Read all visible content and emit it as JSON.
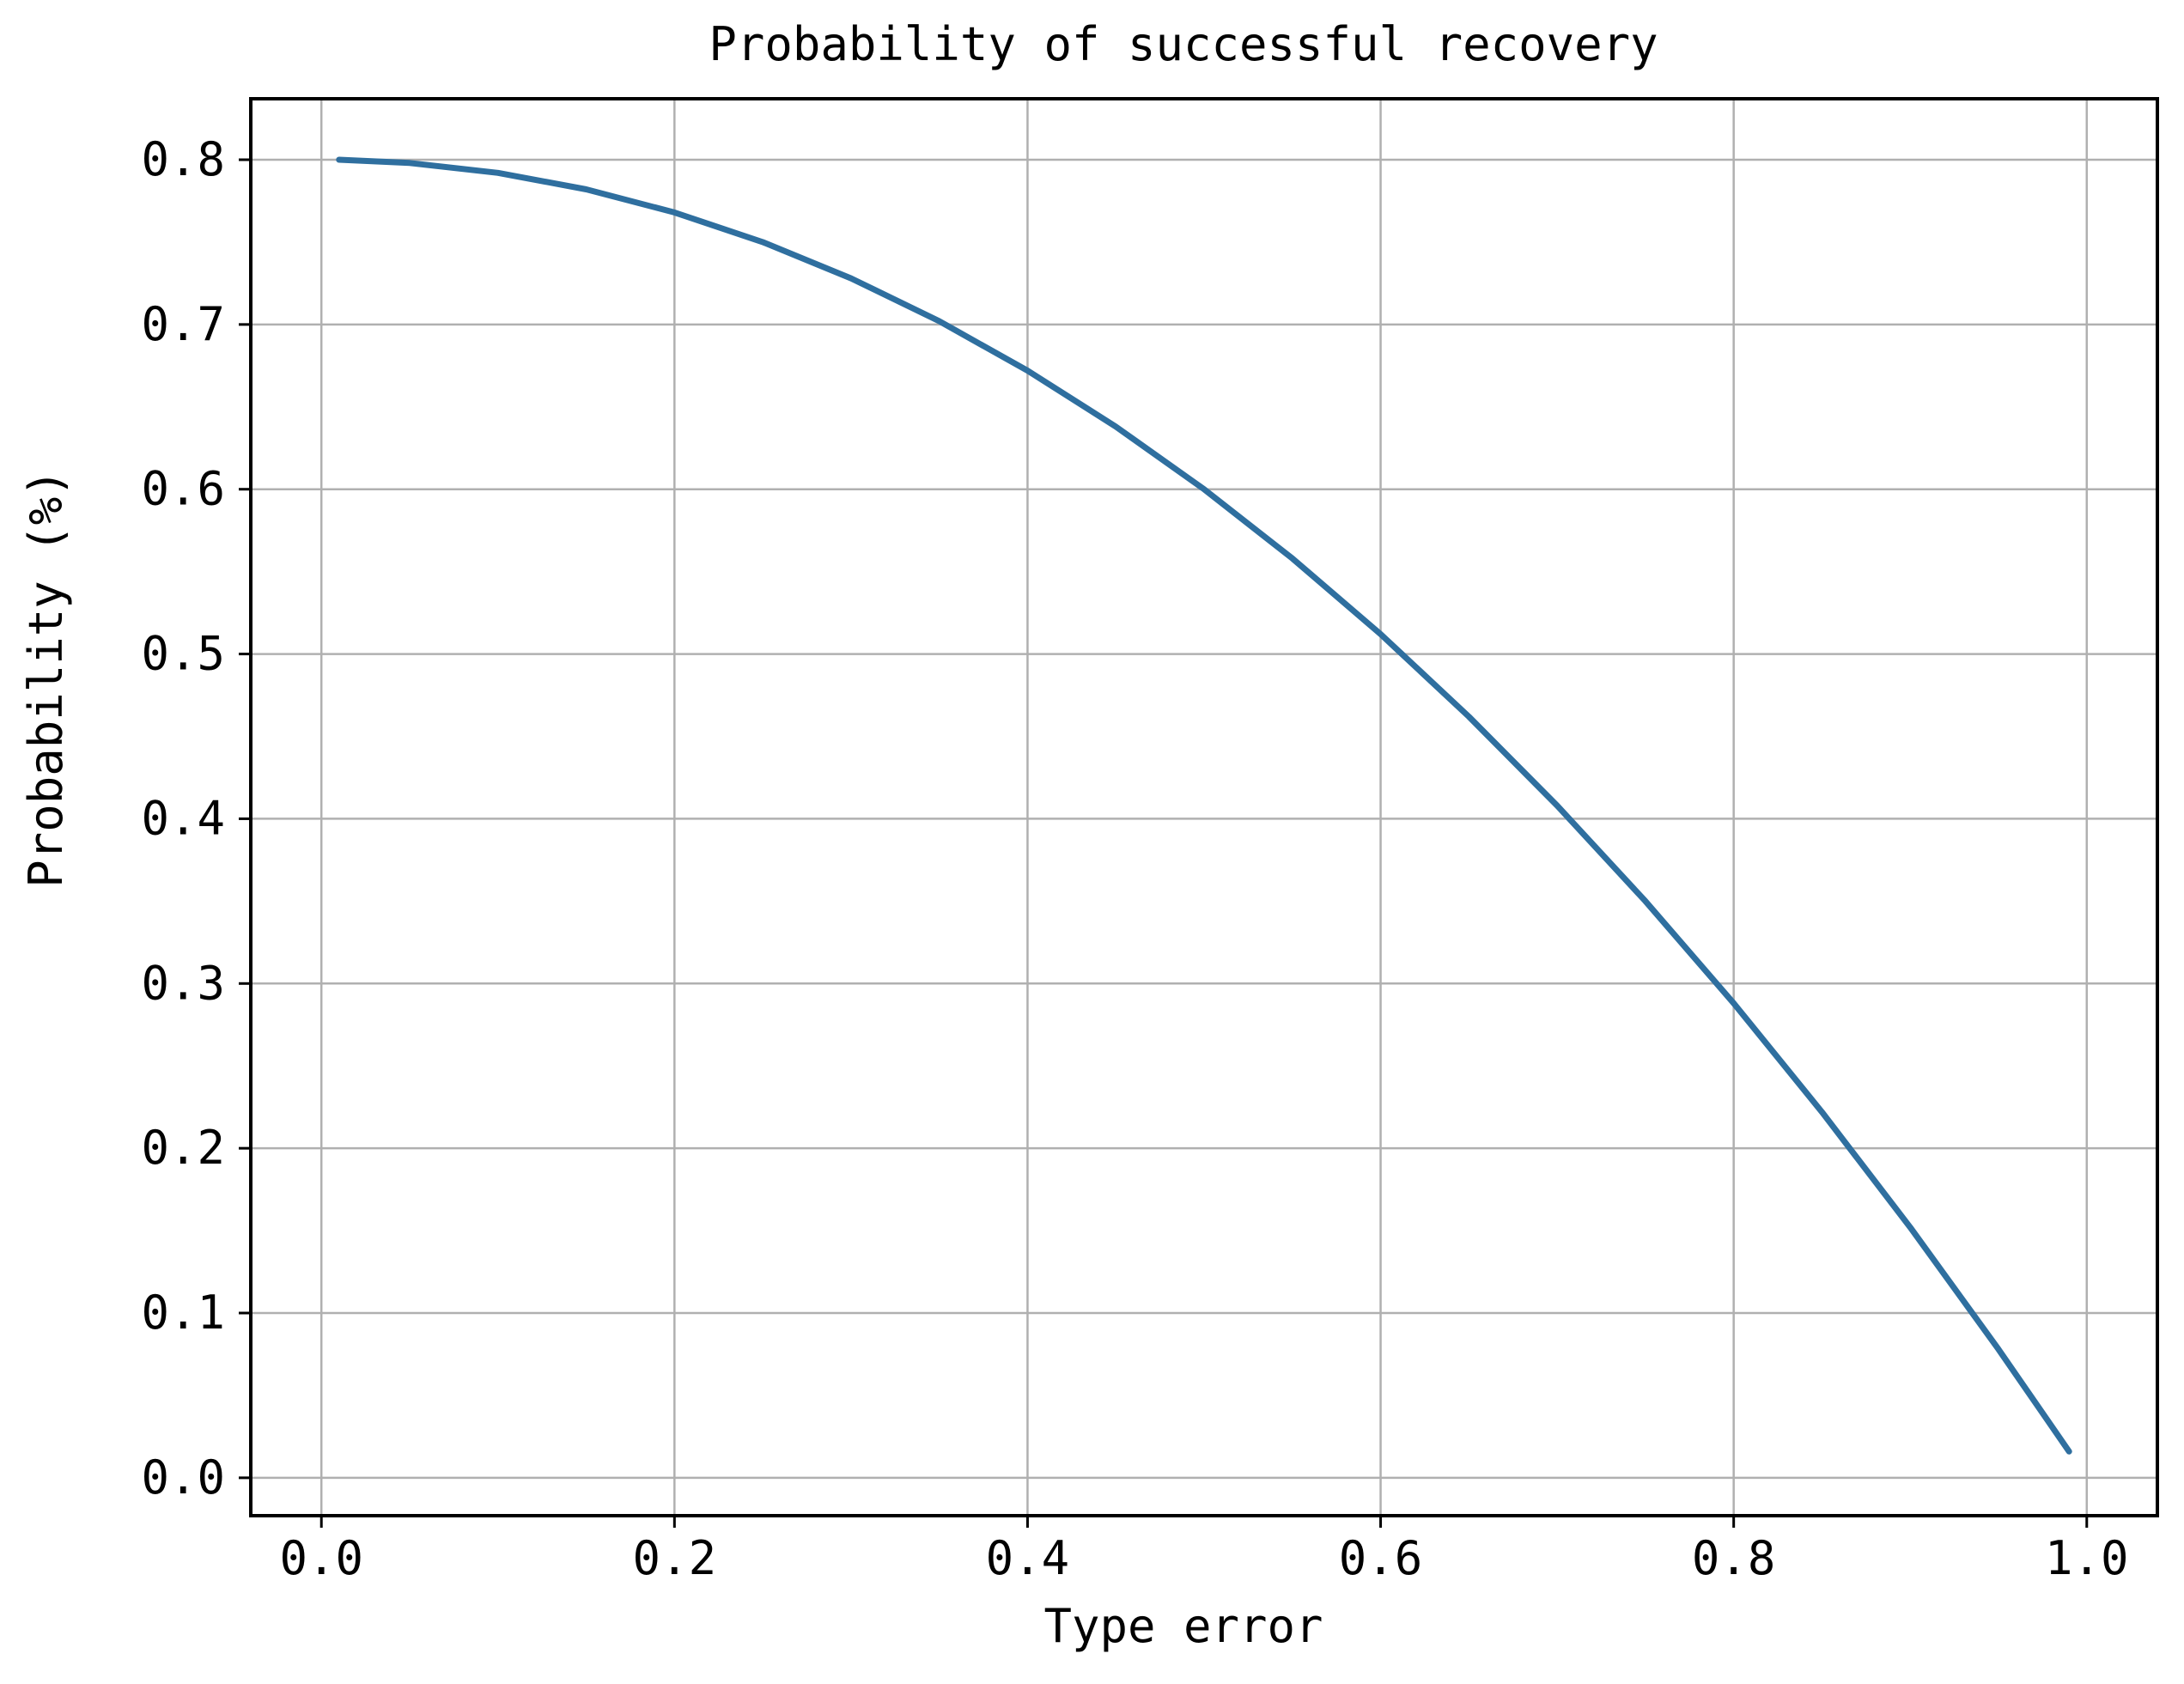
{
  "chart_data": {
    "type": "line",
    "title": "Probability of successful recovery",
    "xlabel": "Type error",
    "ylabel": "Probability (%)",
    "xlim": [
      -0.04,
      1.04
    ],
    "ylim": [
      -0.023,
      0.837
    ],
    "xticks": [
      0.0,
      0.2,
      0.4,
      0.6,
      0.8,
      1.0
    ],
    "xtick_labels": [
      "0.0",
      "0.2",
      "0.4",
      "0.6",
      "0.8",
      "1.0"
    ],
    "yticks": [
      0.0,
      0.1,
      0.2,
      0.3,
      0.4,
      0.5,
      0.6,
      0.7,
      0.8
    ],
    "ytick_labels": [
      "0.0",
      "0.1",
      "0.2",
      "0.3",
      "0.4",
      "0.5",
      "0.6",
      "0.7",
      "0.8"
    ],
    "grid": true,
    "series": [
      {
        "color": "#2f6f9f",
        "x": [
          0.01,
          0.05,
          0.1,
          0.15,
          0.2,
          0.25,
          0.3,
          0.35,
          0.4,
          0.45,
          0.5,
          0.55,
          0.6,
          0.65,
          0.7,
          0.75,
          0.8,
          0.85,
          0.9,
          0.95,
          0.99
        ],
        "y": [
          0.8,
          0.798,
          0.792,
          0.782,
          0.768,
          0.75,
          0.728,
          0.702,
          0.672,
          0.638,
          0.6,
          0.558,
          0.512,
          0.462,
          0.408,
          0.35,
          0.288,
          0.222,
          0.152,
          0.078,
          0.016
        ]
      }
    ]
  }
}
